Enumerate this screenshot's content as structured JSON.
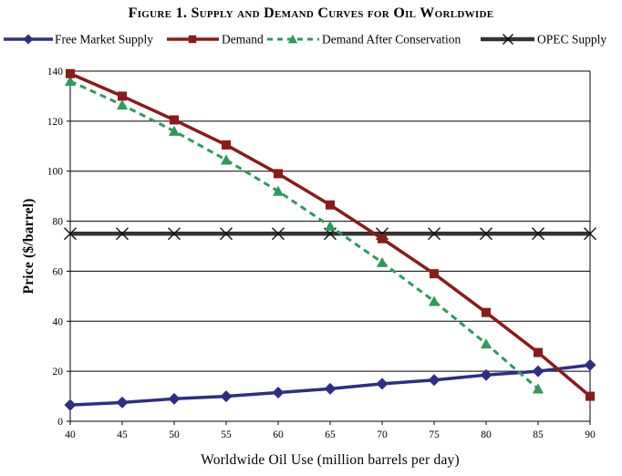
{
  "chart_data": {
    "type": "line",
    "title": "Figure 1. Supply and Demand Curves for Oil Worldwide",
    "xlabel": "Worldwide Oil Use (million barrels per day)",
    "ylabel": "Price ($/barrel)",
    "xlim": [
      40,
      90
    ],
    "ylim": [
      0,
      140
    ],
    "x_ticks": [
      "40",
      "45",
      "50",
      "55",
      "60",
      "65",
      "70",
      "75",
      "80",
      "85",
      "90"
    ],
    "y_ticks": [
      "0",
      "20",
      "40",
      "60",
      "80",
      "100",
      "120",
      "140"
    ],
    "grid": true,
    "legend_position": "top",
    "series": [
      {
        "name": "Free Market Supply",
        "color": "#2e2e86",
        "marker": "diamond",
        "line": "solid",
        "x": [
          40,
          45,
          50,
          55,
          60,
          65,
          70,
          75,
          80,
          85,
          90
        ],
        "values": [
          6.5,
          7.5,
          9,
          10,
          11.5,
          13,
          15,
          16.5,
          18.5,
          20,
          22.5
        ]
      },
      {
        "name": "Demand",
        "color": "#8b1a1a",
        "marker": "square",
        "line": "solid",
        "x": [
          40,
          45,
          50,
          55,
          60,
          65,
          70,
          75,
          80,
          85,
          90
        ],
        "values": [
          139,
          130,
          120.5,
          110.5,
          99,
          86.5,
          73,
          59,
          43.5,
          27.5,
          10
        ]
      },
      {
        "name": "Demand After Conservation",
        "color": "#2e9a5c",
        "marker": "triangle",
        "line": "dashed",
        "x": [
          40,
          45,
          50,
          55,
          60,
          65,
          70,
          75,
          80,
          85
        ],
        "values": [
          136,
          126.5,
          116,
          104.5,
          92,
          78,
          63.5,
          48,
          31,
          13
        ]
      },
      {
        "name": "OPEC Supply",
        "color": "#333333",
        "marker": "x",
        "line": "solid",
        "x": [
          40,
          45,
          50,
          55,
          60,
          65,
          70,
          75,
          80,
          85,
          90
        ],
        "values": [
          75,
          75,
          75,
          75,
          75,
          75,
          75,
          75,
          75,
          75,
          75
        ]
      }
    ]
  }
}
